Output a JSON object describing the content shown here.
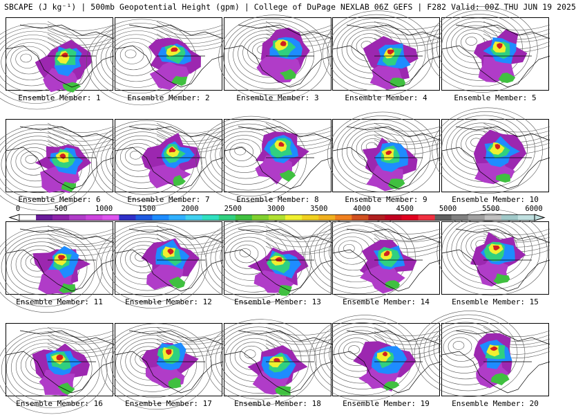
{
  "header": {
    "title": "SBCAPE (J kg⁻¹) | 500mb Geopotential Height (gpm) | College of DuPage NEXLAB 06Z GEFS | F282 Valid: 00Z THU JUN 19 2025"
  },
  "panels": [
    {
      "label": "Ensemble Member: 1"
    },
    {
      "label": "Ensemble Member: 2"
    },
    {
      "label": "Ensemble Member: 3"
    },
    {
      "label": "Ensemble Member: 4"
    },
    {
      "label": "Ensemble Member: 5"
    },
    {
      "label": "Ensemble Member: 6"
    },
    {
      "label": "Ensemble Member: 7"
    },
    {
      "label": "Ensemble Member: 8"
    },
    {
      "label": "Ensemble Member: 9"
    },
    {
      "label": "Ensemble Member: 10"
    },
    {
      "label": "Ensemble Member: 11"
    },
    {
      "label": "Ensemble Member: 12"
    },
    {
      "label": "Ensemble Member: 13"
    },
    {
      "label": "Ensemble Member: 14"
    },
    {
      "label": "Ensemble Member: 15"
    },
    {
      "label": "Ensemble Member: 16"
    },
    {
      "label": "Ensemble Member: 17"
    },
    {
      "label": "Ensemble Member: 18"
    },
    {
      "label": "Ensemble Member: 19"
    },
    {
      "label": "Ensemble Member: 20"
    }
  ],
  "colorbar": {
    "ticks": [
      "0",
      "500",
      "1000",
      "1500",
      "2000",
      "2500",
      "3000",
      "3500",
      "4000",
      "4500",
      "5000",
      "5500",
      "6000"
    ],
    "colors": [
      "#ffffff",
      "#6a1b9a",
      "#8e24aa",
      "#b03cc8",
      "#cc44dd",
      "#dd55ee",
      "#3030c8",
      "#1e5ae0",
      "#1e8cff",
      "#30b0ff",
      "#40d0f0",
      "#30e0c0",
      "#30d080",
      "#40c040",
      "#80d030",
      "#b0e030",
      "#f0f030",
      "#f0d020",
      "#f0b020",
      "#f08020",
      "#d05020",
      "#b02020",
      "#c00020",
      "#e00020",
      "#f03040",
      "#606060",
      "#808080",
      "#a0a0a0",
      "#c0c0c0",
      "#a0c8c8",
      "#c0e0e0"
    ]
  }
}
